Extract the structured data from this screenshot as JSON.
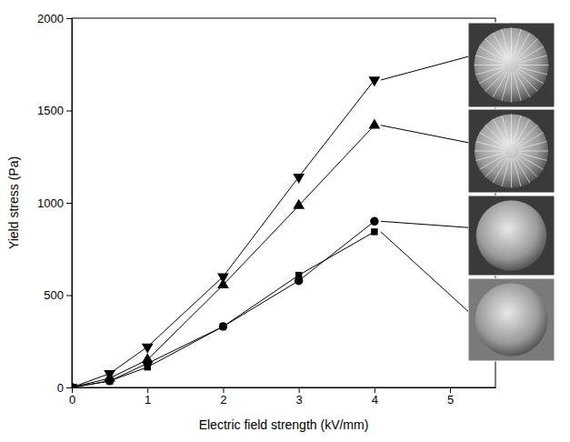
{
  "chart_data": {
    "type": "line",
    "x_label": "Electric field strength (kV/mm)",
    "y_label": "Yield stress (Pa)",
    "x": [
      0,
      0.5,
      1,
      2,
      3,
      4
    ],
    "series": [
      {
        "color": "#000000",
        "marker": "triangle-down",
        "line_style": "solid",
        "values": [
          0,
          75,
          220,
          600,
          1140,
          1665
        ]
      },
      {
        "color": "#000000",
        "marker": "triangle-up",
        "line_style": "solid",
        "values": [
          0,
          50,
          150,
          555,
          985,
          1420
        ]
      },
      {
        "color": "#000000",
        "marker": "circle",
        "line_style": "solid",
        "values": [
          0,
          35,
          130,
          330,
          578,
          900
        ]
      },
      {
        "color": "#000000",
        "marker": "square",
        "line_style": "solid",
        "values": [
          0,
          35,
          110,
          330,
          608,
          843
        ]
      }
    ],
    "xlim": [
      0,
      5.6
    ],
    "ylim": [
      0,
      2000
    ],
    "xticks": [
      0,
      1,
      2,
      3,
      4,
      5
    ],
    "yticks": [
      0,
      500,
      1000,
      1500,
      2000
    ],
    "grid": false
  }
}
